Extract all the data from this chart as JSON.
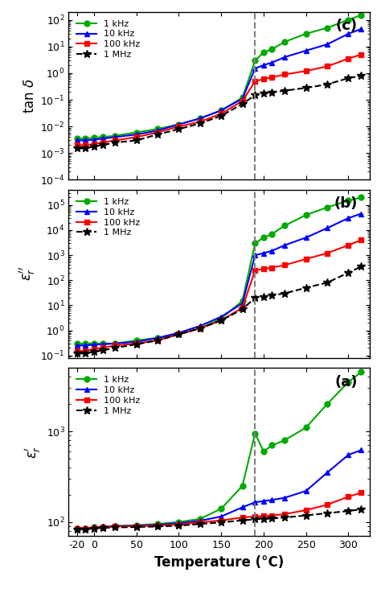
{
  "temperatures": [
    -20,
    -10,
    0,
    10,
    25,
    50,
    75,
    100,
    125,
    150,
    175,
    190,
    200,
    210,
    225,
    250,
    275,
    300,
    315
  ],
  "vline_x": 190,
  "colors": {
    "1kHz": "#00aa00",
    "10kHz": "#0000ff",
    "100kHz": "#ff0000",
    "1MHz": "#000000"
  },
  "panel_a": {
    "label": "(a)",
    "ylabel": "$\\varepsilon_r^{\\prime}$",
    "ylim": [
      70,
      5000
    ],
    "data": {
      "1kHz": [
        85,
        85,
        87,
        88,
        90,
        92,
        95,
        100,
        108,
        140,
        250,
        950,
        600,
        700,
        800,
        1100,
        2000,
        3500,
        4500
      ],
      "10kHz": [
        85,
        85,
        87,
        88,
        90,
        91,
        93,
        97,
        103,
        115,
        145,
        165,
        170,
        175,
        185,
        220,
        350,
        550,
        620
      ],
      "100kHz": [
        85,
        85,
        86,
        87,
        89,
        90,
        91,
        94,
        99,
        104,
        112,
        115,
        116,
        118,
        122,
        135,
        155,
        190,
        210
      ],
      "1MHz": [
        83,
        83,
        85,
        86,
        87,
        88,
        89,
        91,
        95,
        99,
        104,
        107,
        108,
        109,
        112,
        118,
        125,
        132,
        138
      ]
    }
  },
  "panel_b": {
    "label": "(b)",
    "ylabel": "$\\varepsilon_r^{\\prime\\prime}$",
    "ylim": [
      0.08,
      400000
    ],
    "data": {
      "1kHz": [
        0.3,
        0.3,
        0.3,
        0.3,
        0.3,
        0.4,
        0.5,
        0.7,
        1.2,
        3.0,
        15,
        3000,
        5000,
        7000,
        15000,
        40000,
        80000,
        150000,
        200000
      ],
      "10kHz": [
        0.25,
        0.25,
        0.27,
        0.28,
        0.3,
        0.35,
        0.5,
        0.8,
        1.5,
        3.5,
        12,
        1000,
        1200,
        1500,
        2500,
        5000,
        12000,
        30000,
        45000
      ],
      "100kHz": [
        0.15,
        0.15,
        0.18,
        0.2,
        0.25,
        0.3,
        0.4,
        0.7,
        1.2,
        2.5,
        8,
        250,
        280,
        320,
        400,
        700,
        1200,
        2500,
        4000
      ],
      "1MHz": [
        0.12,
        0.12,
        0.14,
        0.16,
        0.2,
        0.28,
        0.4,
        0.7,
        1.2,
        2.5,
        7,
        20,
        22,
        25,
        30,
        50,
        80,
        200,
        350
      ]
    }
  },
  "panel_c": {
    "label": "(c)",
    "ylabel": "tan $\\delta$",
    "ylim": [
      0.0001,
      200
    ],
    "data": {
      "1kHz": [
        0.0035,
        0.0035,
        0.0038,
        0.004,
        0.0045,
        0.006,
        0.008,
        0.012,
        0.02,
        0.04,
        0.12,
        3.0,
        6.0,
        8.0,
        15,
        30,
        50,
        100,
        150
      ],
      "10kHz": [
        0.003,
        0.003,
        0.0032,
        0.0035,
        0.004,
        0.005,
        0.007,
        0.012,
        0.02,
        0.04,
        0.11,
        1.5,
        2.0,
        2.5,
        4.0,
        7.0,
        12,
        30,
        45
      ],
      "100kHz": [
        0.002,
        0.002,
        0.0022,
        0.0025,
        0.003,
        0.004,
        0.006,
        0.01,
        0.015,
        0.03,
        0.09,
        0.5,
        0.6,
        0.7,
        0.9,
        1.2,
        1.8,
        3.5,
        5.0
      ],
      "1MHz": [
        0.0015,
        0.0015,
        0.0018,
        0.002,
        0.0025,
        0.003,
        0.005,
        0.008,
        0.013,
        0.025,
        0.07,
        0.15,
        0.17,
        0.19,
        0.22,
        0.28,
        0.38,
        0.65,
        0.8
      ]
    }
  },
  "xlabel": "Temperature (°C)",
  "legend_labels": [
    "1 kHz",
    "10 kHz",
    "100 kHz",
    "1 MHz"
  ],
  "markers": [
    "o",
    "^",
    "s",
    "*"
  ],
  "linewidths": 1.5,
  "markersize": 5,
  "markersize_star": 7
}
